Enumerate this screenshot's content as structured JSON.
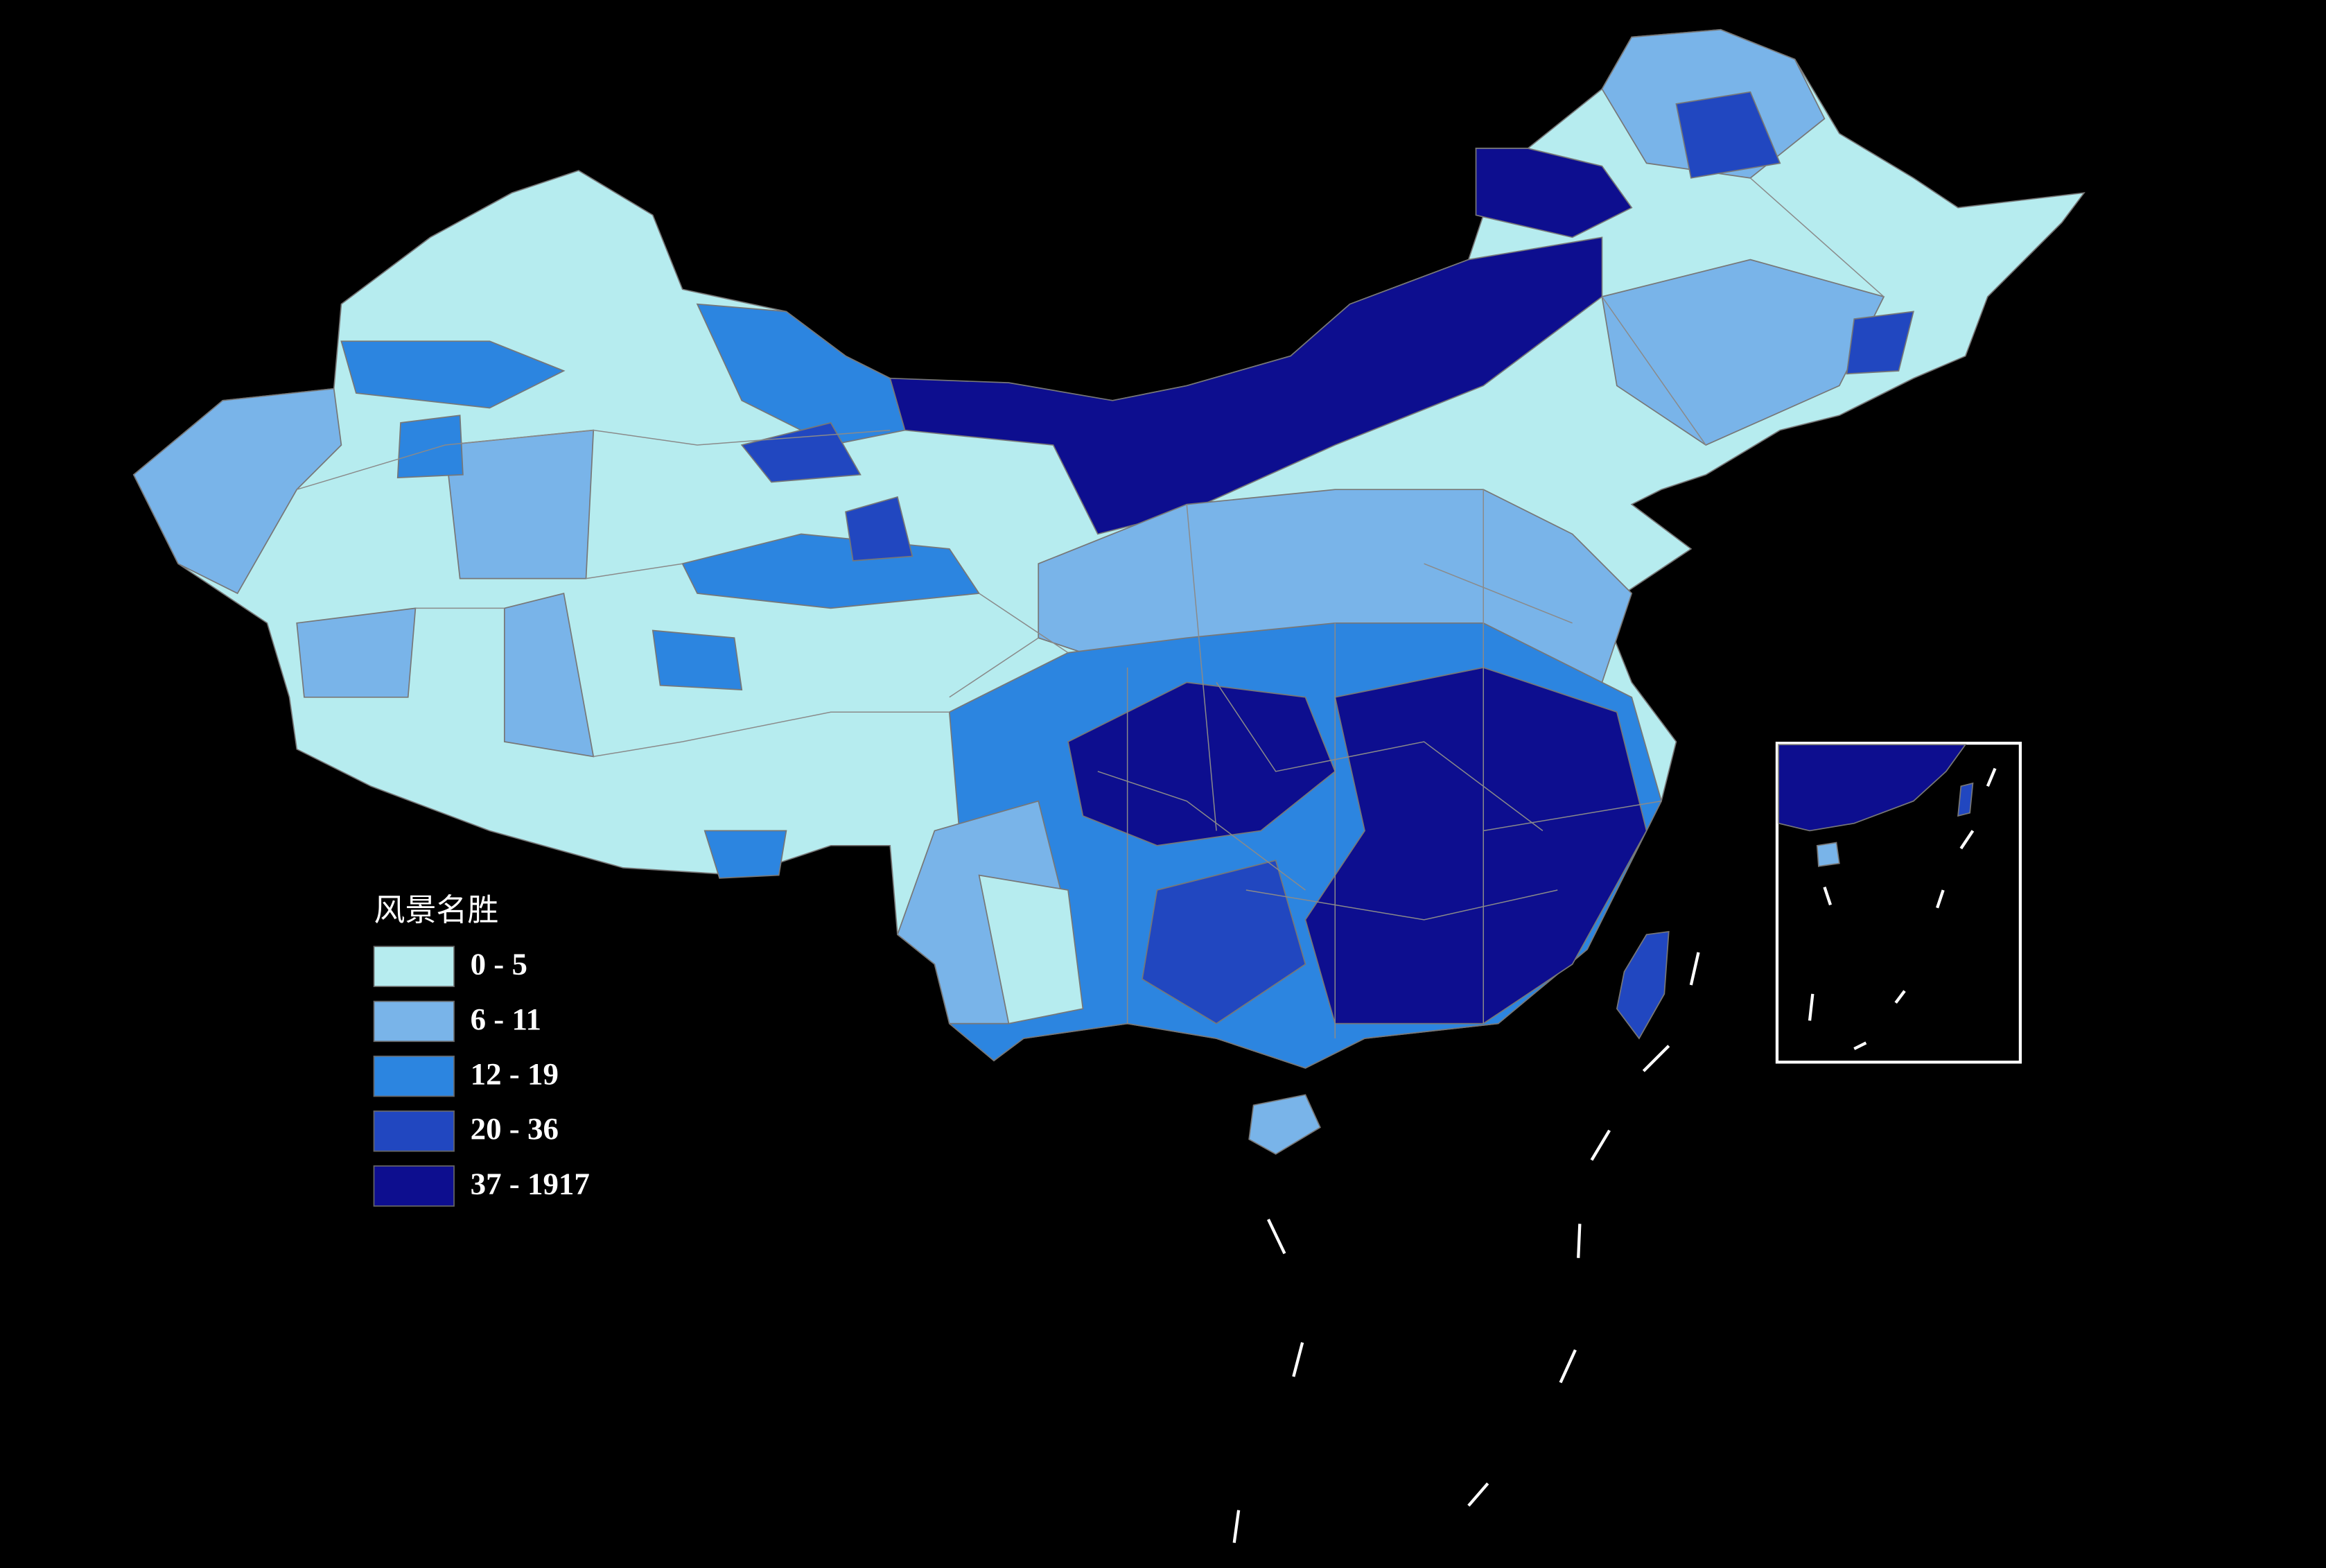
{
  "legend": {
    "title": "风景名胜",
    "classes": [
      {
        "label": "0 - 5",
        "color": "#b6ecef"
      },
      {
        "label": "6 - 11",
        "color": "#79b4e9"
      },
      {
        "label": "12 - 19",
        "color": "#2c85e0"
      },
      {
        "label": "20 - 36",
        "color": "#2147c0"
      },
      {
        "label": "37 - 1917",
        "color": "#0d0e8f"
      }
    ]
  }
}
